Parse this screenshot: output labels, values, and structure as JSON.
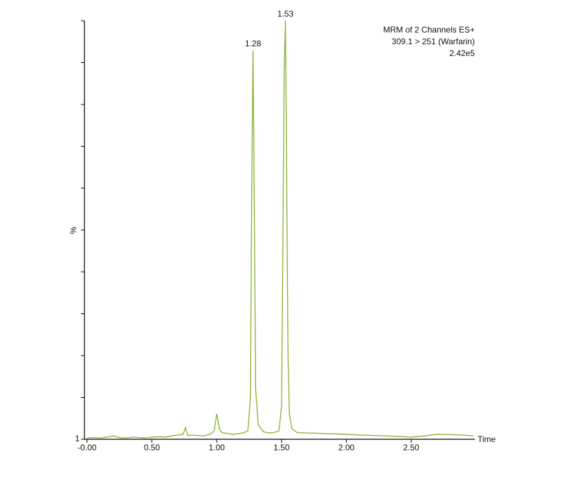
{
  "chart_data": {
    "type": "line",
    "annotations": [
      "MRM of 2 Channels ES+",
      "309.1 > 251 (Warfarin)",
      "2.42e5"
    ],
    "ylabel": "%",
    "xlabel": "Time",
    "color": "#8fb339",
    "x": [
      0,
      0.05,
      0.1,
      0.15,
      0.2,
      0.25,
      0.3,
      0.35,
      0.4,
      0.45,
      0.5,
      0.55,
      0.6,
      0.65,
      0.7,
      0.74,
      0.76,
      0.77,
      0.78,
      0.8,
      0.85,
      0.9,
      0.95,
      0.98,
      0.99,
      1.0,
      1.01,
      1.02,
      1.04,
      1.08,
      1.12,
      1.16,
      1.2,
      1.24,
      1.26,
      1.27,
      1.28,
      1.29,
      1.3,
      1.32,
      1.36,
      1.4,
      1.44,
      1.48,
      1.5,
      1.51,
      1.52,
      1.53,
      1.54,
      1.55,
      1.56,
      1.58,
      1.62,
      1.7,
      1.8,
      1.9,
      2.0,
      2.1,
      2.2,
      2.3,
      2.4,
      2.5,
      2.6,
      2.7,
      2.8,
      2.9,
      2.98
    ],
    "values": [
      0.3,
      0.4,
      0.3,
      0.5,
      0.8,
      0.4,
      0.3,
      0.5,
      0.4,
      0.3,
      0.5,
      0.6,
      0.5,
      0.8,
      1.0,
      1.2,
      2.8,
      1.5,
      0.8,
      1.0,
      0.9,
      0.8,
      1.2,
      2.0,
      4.0,
      6.1,
      4.5,
      2.5,
      1.6,
      1.4,
      1.2,
      1.3,
      1.5,
      2.0,
      10,
      60,
      92.9,
      55,
      12,
      3.5,
      1.8,
      1.5,
      1.6,
      2.0,
      8,
      45,
      88,
      100,
      60,
      20,
      6,
      2.5,
      1.6,
      1.5,
      1.4,
      1.3,
      1.2,
      1.0,
      0.9,
      0.8,
      0.7,
      0.5,
      0.8,
      1.2,
      1.1,
      1.0,
      0.8
    ],
    "peaks": [
      1.28,
      1.53
    ],
    "xlim": [
      -0.02,
      2.99
    ],
    "xticks": [
      {
        "value": 0,
        "label": "-0.00"
      },
      {
        "value": 0.5,
        "label": "0.50"
      },
      {
        "value": 1,
        "label": "1.00"
      },
      {
        "value": 1.5,
        "label": "1.50"
      },
      {
        "value": 2,
        "label": "2.00"
      },
      {
        "value": 2.5,
        "label": "2.50"
      }
    ],
    "ylim": [
      0,
      100
    ],
    "yticks": [
      {
        "value": 0,
        "label": "1"
      }
    ],
    "yminorticks": [
      10,
      20,
      30,
      40,
      50,
      60,
      70,
      80,
      90,
      100
    ]
  }
}
